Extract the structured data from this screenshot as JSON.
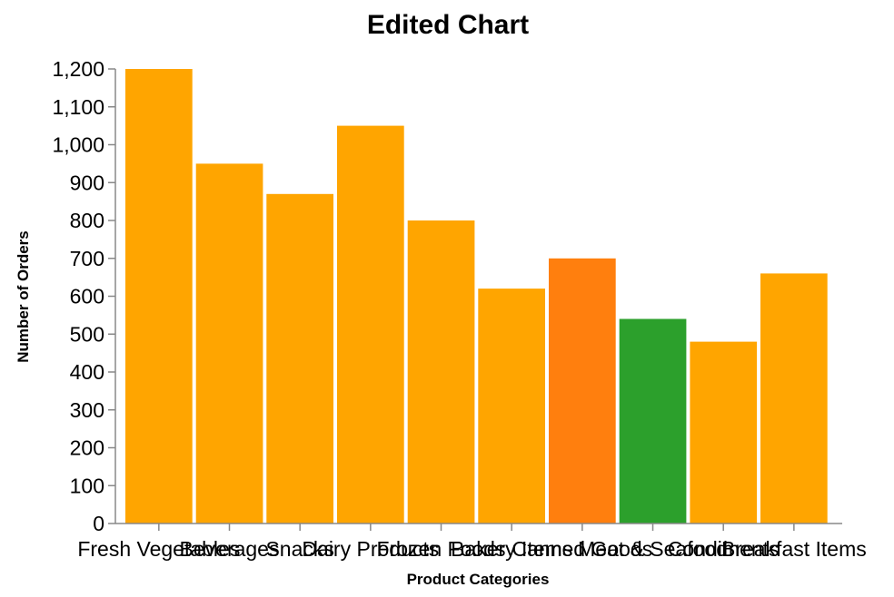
{
  "chart_data": {
    "type": "bar",
    "title": "Edited Chart",
    "xlabel": "Product Categories",
    "ylabel": "Number of Orders",
    "ylim": [
      0,
      1200
    ],
    "yticks": [
      0,
      100,
      200,
      300,
      400,
      500,
      600,
      700,
      800,
      900,
      1000,
      1100,
      1200
    ],
    "categories": [
      "Fresh Vegetables",
      "Beverages",
      "Snacks",
      "Dairy Products",
      "Frozen Foods",
      "Bakery Items",
      "Canned Goods",
      "Meat & Seafood",
      "Condiments",
      "Breakfast Items"
    ],
    "values": [
      1200,
      950,
      870,
      1050,
      800,
      620,
      700,
      540,
      480,
      660
    ],
    "colors": [
      "#FFA500",
      "#FFA500",
      "#FFA500",
      "#FFA500",
      "#FFA500",
      "#FFA500",
      "#FF7F0E",
      "#2CA02C",
      "#FFA500",
      "#FFA500"
    ],
    "grid": false,
    "legend": "none"
  }
}
